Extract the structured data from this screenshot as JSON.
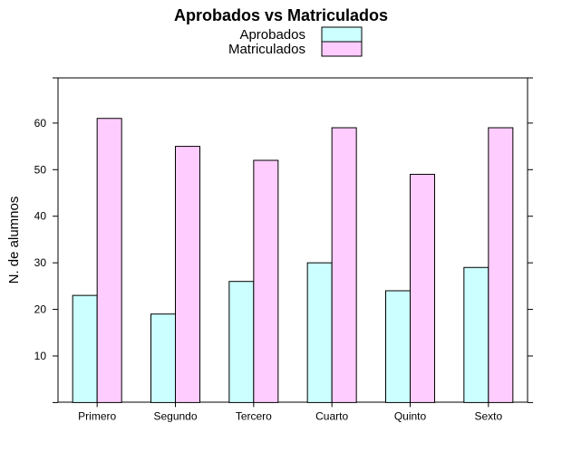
{
  "chart_data": {
    "type": "bar",
    "title": "Aprobados vs Matriculados",
    "xlabel": "",
    "ylabel": "N. de alumnos",
    "categories": [
      "Primero",
      "Segundo",
      "Tercero",
      "Cuarto",
      "Quinto",
      "Sexto"
    ],
    "series": [
      {
        "name": "Aprobados",
        "color": "#CCFFFF",
        "values": [
          23,
          19,
          26,
          30,
          24,
          29
        ]
      },
      {
        "name": "Matriculados",
        "color": "#FFCCFF",
        "values": [
          61,
          55,
          52,
          59,
          49,
          59
        ]
      }
    ],
    "ylim": [
      0,
      69.7
    ],
    "yticks": [
      10,
      20,
      30,
      40,
      50,
      60
    ],
    "grid": false,
    "legend": "top"
  }
}
